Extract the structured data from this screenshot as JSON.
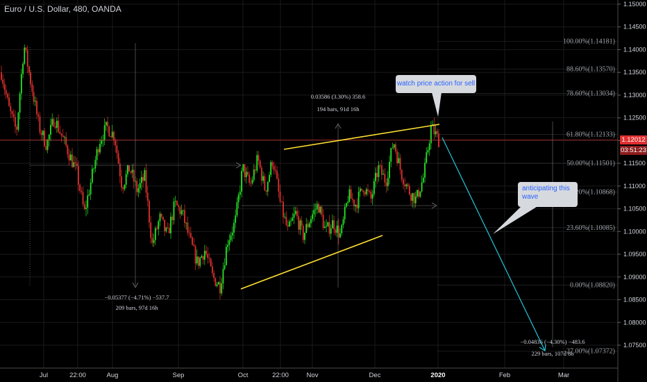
{
  "header": {
    "title": "Euro / U.S. Dollar, 480, OANDA"
  },
  "chart_data": {
    "type": "candlestick",
    "symbol": "Euro / U.S. Dollar",
    "interval": "480",
    "source": "OANDA",
    "ylim": [
      1.0735,
      1.1515
    ],
    "y_ticks": [
      "1.15000",
      "1.14500",
      "1.14000",
      "1.13500",
      "1.13000",
      "1.12500",
      "1.12000",
      "1.11500",
      "1.11000",
      "1.10500",
      "1.10000",
      "1.09500",
      "1.09000",
      "1.08500",
      "1.08000",
      "1.07500"
    ],
    "x_ticks": [
      "Jul",
      "22:00",
      "Aug",
      "Sep",
      "Oct",
      "22:00",
      "Nov",
      "Dec",
      "2020",
      "Feb",
      "Mar"
    ],
    "price_path": [
      1.135,
      1.127,
      1.122,
      1.141,
      1.132,
      1.123,
      1.119,
      1.125,
      1.121,
      1.117,
      1.113,
      1.104,
      1.112,
      1.12,
      1.123,
      1.121,
      1.11,
      1.114,
      1.109,
      1.112,
      1.097,
      1.103,
      1.099,
      1.106,
      1.104,
      1.098,
      1.093,
      1.096,
      1.09,
      1.088,
      1.098,
      1.102,
      1.114,
      1.11,
      1.116,
      1.109,
      1.116,
      1.106,
      1.1,
      1.104,
      1.099,
      1.103,
      1.106,
      1.1,
      1.102,
      1.099,
      1.108,
      1.106,
      1.11,
      1.107,
      1.114,
      1.111,
      1.12,
      1.113,
      1.109,
      1.107,
      1.112,
      1.123,
      1.1201
    ],
    "last_price": "1.12012",
    "countdown": "03:51:23",
    "fib_levels": [
      {
        "label": "100.00%(1.14181)",
        "value": 1.14181
      },
      {
        "label": "88.60%(1.13570)",
        "value": 1.1357
      },
      {
        "label": "78.60%(1.13034)",
        "value": 1.13034
      },
      {
        "label": "61.80%(1.12133)",
        "value": 1.12133
      },
      {
        "label": "50.00%(1.11501)",
        "value": 1.11501
      },
      {
        "label": "38.20%(1.10868)",
        "value": 1.10868
      },
      {
        "label": "23.60%(1.10085)",
        "value": 1.10085
      },
      {
        "label": "0.00%(1.08820)",
        "value": 1.0882
      },
      {
        "label": "-27.00%(1.07372)",
        "value": 1.07372
      }
    ],
    "measures": [
      {
        "line1": "−0.05377 (−4.71%) −537.7",
        "line2": "209 bars, 97d 16h"
      },
      {
        "line1": "0.03586 (3.30%) 358.6",
        "line2": "194 bars, 91d 16h"
      },
      {
        "line1": "−0.04836 (−4.30%) −483.6",
        "line2": "229 bars, 107d 8h"
      }
    ],
    "annotations": [
      "watch price action for sell",
      "anticipating this wave"
    ],
    "colors": {
      "up": "#26e626",
      "down": "#e0322e",
      "trend": "#ffe033",
      "projection": "#26c6da",
      "price_line": "#e03030",
      "grid": "#1a1a1a"
    }
  }
}
